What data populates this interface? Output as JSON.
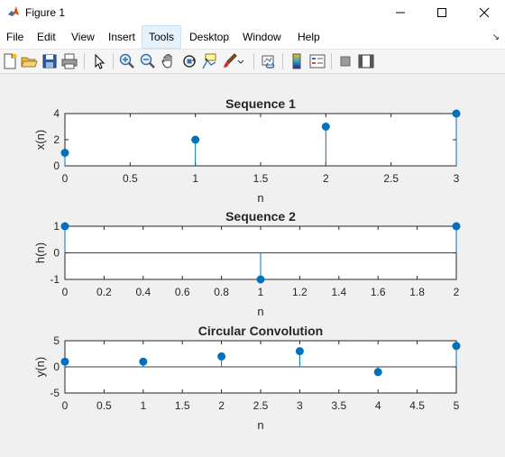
{
  "window": {
    "title": "Figure 1"
  },
  "menu": {
    "items": [
      {
        "label": "File"
      },
      {
        "label": "Edit"
      },
      {
        "label": "View"
      },
      {
        "label": "Insert"
      },
      {
        "label": "Tools"
      },
      {
        "label": "Desktop"
      },
      {
        "label": "Window"
      },
      {
        "label": "Help"
      }
    ],
    "active": "Tools"
  },
  "toolbar": {
    "buttons": [
      "new-figure-icon",
      "open-file-icon",
      "save-icon",
      "print-icon",
      "edit-plot-arrow-icon",
      "zoom-in-icon",
      "zoom-out-icon",
      "pan-hand-icon",
      "rotate-3d-icon",
      "data-cursor-icon",
      "brush-icon",
      "link-plot-icon",
      "insert-colorbar-icon",
      "insert-legend-icon",
      "hide-plot-tools-icon",
      "show-plot-tools-icon"
    ]
  },
  "colors": {
    "stem": "#0072BD",
    "axes_bg": "#ffffff",
    "figure_bg": "#f0f0f0"
  },
  "chart_data": [
    {
      "type": "stem",
      "title": "Sequence 1",
      "xlabel": "n",
      "ylabel": "x(n)",
      "x": [
        0,
        1,
        2,
        3
      ],
      "values": [
        1,
        2,
        3,
        4
      ],
      "xlim": [
        0,
        3
      ],
      "ylim": [
        0,
        4
      ],
      "xticks": [
        0,
        0.5,
        1,
        1.5,
        2,
        2.5,
        3
      ],
      "xtick_labels": [
        "0",
        "0.5",
        "1",
        "1.5",
        "2",
        "2.5",
        "3"
      ],
      "yticks": [
        0,
        2,
        4
      ],
      "ytick_labels": [
        "0",
        "2",
        "4"
      ]
    },
    {
      "type": "stem",
      "title": "Sequence 2",
      "xlabel": "n",
      "ylabel": "h(n)",
      "x": [
        0,
        1,
        2
      ],
      "values": [
        1,
        -1,
        1
      ],
      "xlim": [
        0,
        2
      ],
      "ylim": [
        -1,
        1
      ],
      "xticks": [
        0,
        0.2,
        0.4,
        0.6,
        0.8,
        1,
        1.2,
        1.4,
        1.6,
        1.8,
        2
      ],
      "xtick_labels": [
        "0",
        "0.2",
        "0.4",
        "0.6",
        "0.8",
        "1",
        "1.2",
        "1.4",
        "1.6",
        "1.8",
        "2"
      ],
      "yticks": [
        -1,
        0,
        1
      ],
      "ytick_labels": [
        "-1",
        "0",
        "1"
      ]
    },
    {
      "type": "stem",
      "title": "Circular Convolution",
      "xlabel": "n",
      "ylabel": "y(n)",
      "x": [
        0,
        1,
        2,
        3,
        4,
        5
      ],
      "values": [
        1,
        1,
        2,
        3,
        -1,
        4
      ],
      "xlim": [
        0,
        5
      ],
      "ylim": [
        -5,
        5
      ],
      "xticks": [
        0,
        0.5,
        1,
        1.5,
        2,
        2.5,
        3,
        3.5,
        4,
        4.5,
        5
      ],
      "xtick_labels": [
        "0",
        "0.5",
        "1",
        "1.5",
        "2",
        "2.5",
        "3",
        "3.5",
        "4",
        "4.5",
        "5"
      ],
      "yticks": [
        -5,
        0,
        5
      ],
      "ytick_labels": [
        "-5",
        "0",
        "5"
      ]
    }
  ]
}
